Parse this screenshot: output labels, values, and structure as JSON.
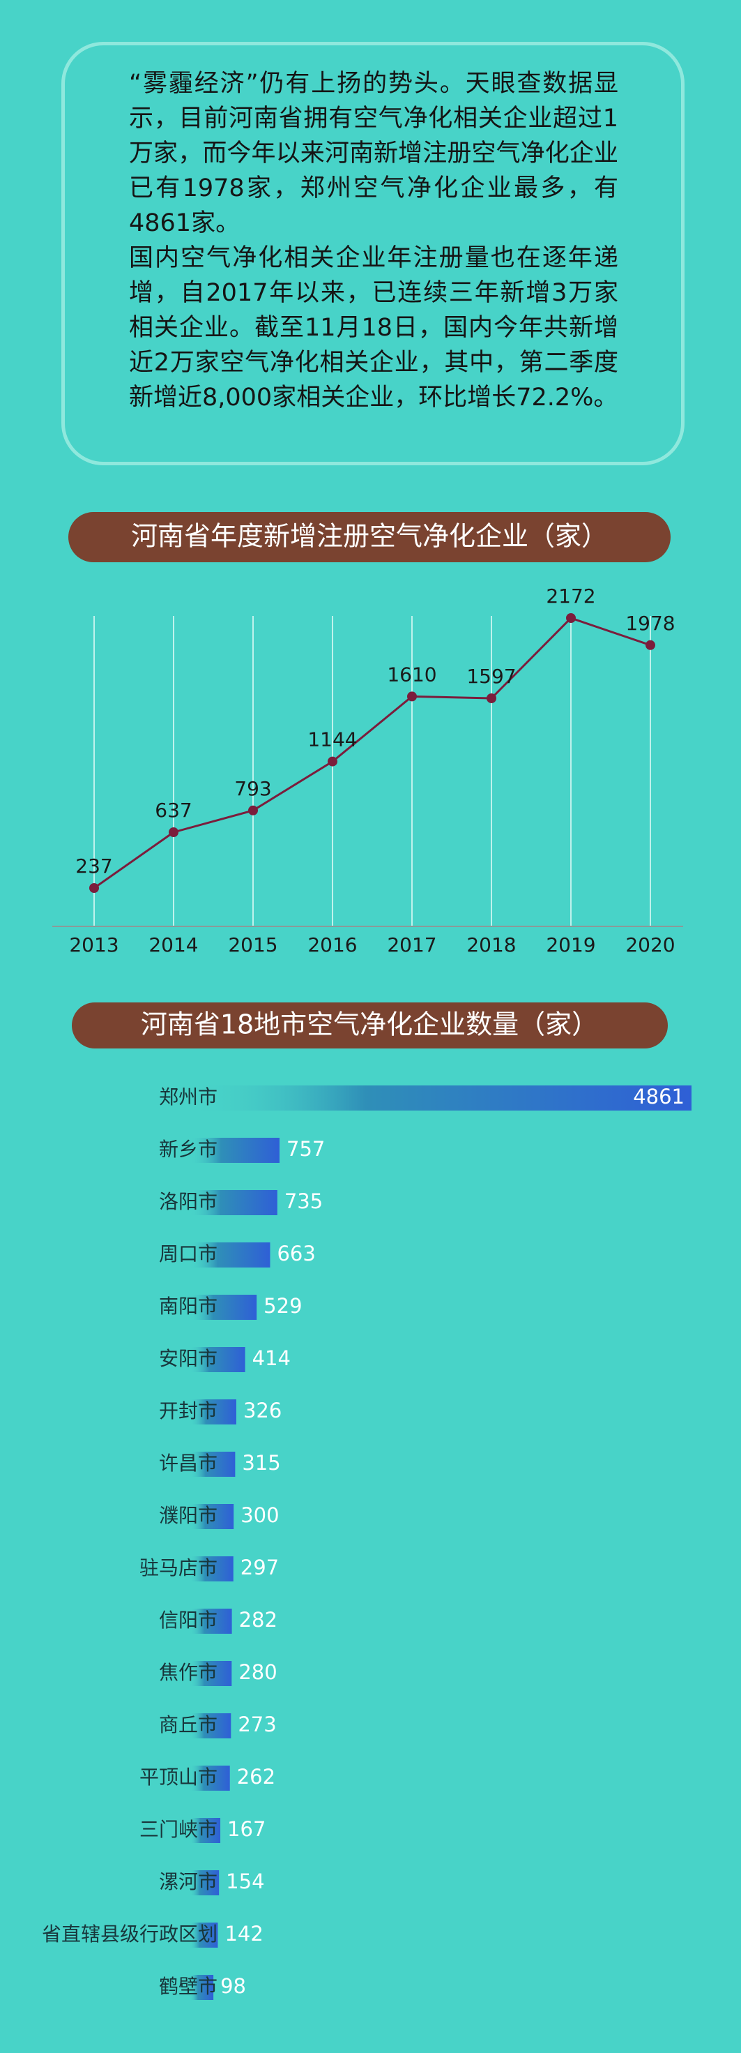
{
  "intro": {
    "paragraphs": [
      "“雾霾经济”仍有上扬的势头。天眼查数据显示，目前河南省拥有空气净化相关企业超过1万家，而今年以来河南新增注册空气净化企业已有1978家，郑州空气净化企业最多，有4861家。",
      "国内空气净化相关企业年注册量也在逐年递增，自2017年以来，已连续三年新增3万家相关企业。截至11月18日，国内今年共新增近2万家空气净化相关企业，其中，第二季度新增近8,000家相关企业，环比增长72.2%。"
    ]
  },
  "chart_data": [
    {
      "type": "line",
      "title": "河南省年度新增注册空气净化企业（家）",
      "categories": [
        "2013",
        "2014",
        "2015",
        "2016",
        "2017",
        "2018",
        "2019",
        "2020"
      ],
      "values": [
        237,
        637,
        793,
        1144,
        1610,
        1597,
        2172,
        1978
      ],
      "color": "#7b1d3c"
    },
    {
      "type": "hbar",
      "title": "河南省18地市空气净化企业数量（家）",
      "categories": [
        "郑州市",
        "新乡市",
        "洛阳市",
        "周口市",
        "南阳市",
        "安阳市",
        "开封市",
        "许昌市",
        "濮阳市",
        "驻马店市",
        "信阳市",
        "焦作市",
        "商丘市",
        "平顶山市",
        "三门峡市",
        "漯河市",
        "省直辖县级行政区划",
        "鹤壁市"
      ],
      "values": [
        4861,
        757,
        735,
        663,
        529,
        414,
        326,
        315,
        300,
        297,
        282,
        280,
        273,
        262,
        167,
        154,
        142,
        98
      ],
      "color": "#2f5fd6"
    }
  ]
}
